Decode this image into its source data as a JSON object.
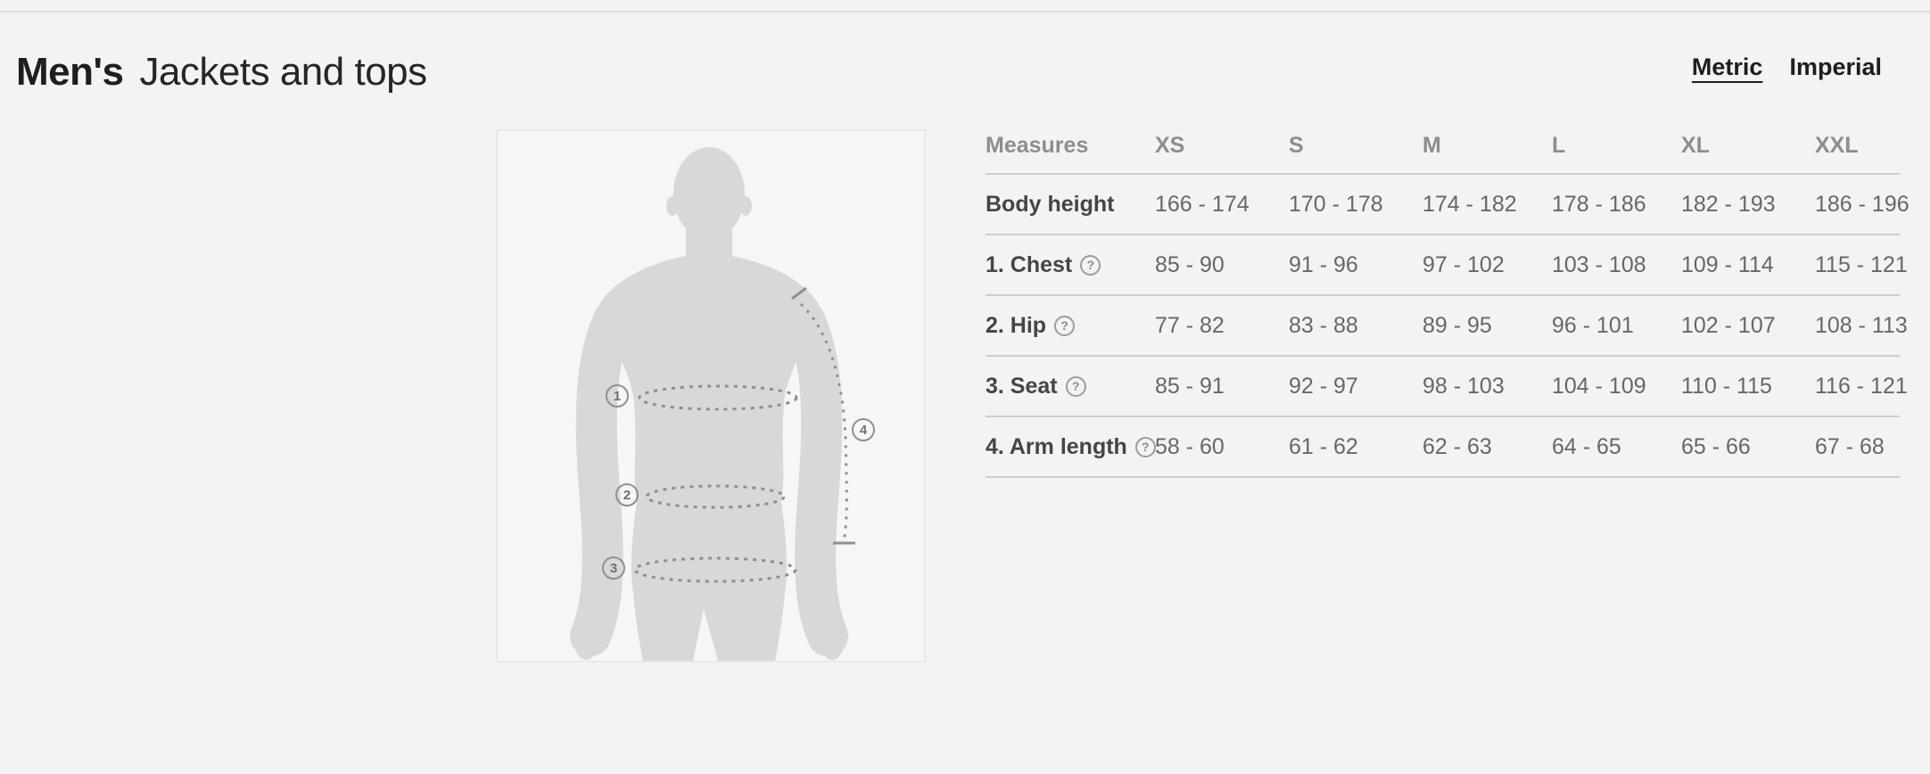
{
  "header": {
    "category": "Men's",
    "section": "Jackets and tops"
  },
  "unit_toggle": {
    "options": [
      "Metric",
      "Imperial"
    ],
    "selected": "Metric"
  },
  "help_symbol": "?",
  "diagram": {
    "markers": [
      "1",
      "2",
      "3",
      "4"
    ]
  },
  "size_table": {
    "columns": [
      "Measures",
      "XS",
      "S",
      "M",
      "L",
      "XL",
      "XXL"
    ],
    "rows": [
      {
        "label": "Body height",
        "has_help": false,
        "values": [
          "166 - 174",
          "170 - 178",
          "174 - 182",
          "178 - 186",
          "182 - 193",
          "186 - 196"
        ]
      },
      {
        "label": "1. Chest",
        "has_help": true,
        "values": [
          "85 - 90",
          "91 - 96",
          "97 - 102",
          "103 - 108",
          "109 - 114",
          "115 - 121"
        ]
      },
      {
        "label": "2. Hip",
        "has_help": true,
        "values": [
          "77 - 82",
          "83 - 88",
          "89 - 95",
          "96 - 101",
          "102 - 107",
          "108 - 113"
        ]
      },
      {
        "label": "3. Seat",
        "has_help": true,
        "values": [
          "85 - 91",
          "92 - 97",
          "98 - 103",
          "104 - 109",
          "110 - 115",
          "116 - 121"
        ]
      },
      {
        "label": "4. Arm length",
        "has_help": true,
        "values": [
          "58 - 60",
          "61 - 62",
          "62 - 63",
          "64 - 65",
          "65 - 66",
          "67 - 68"
        ]
      }
    ]
  },
  "colors": {
    "background": "#f3f3f3",
    "panel_background": "#f6f6f6",
    "panel_border": "#e8e8e8",
    "silhouette": "#d8d8d8",
    "dash_line": "#8f8f8f",
    "table_line": "#cdcdcd",
    "text_title": "#1e1e1e",
    "text_label": "#454545",
    "text_value": "#676767",
    "text_header": "#8d8d8d"
  }
}
